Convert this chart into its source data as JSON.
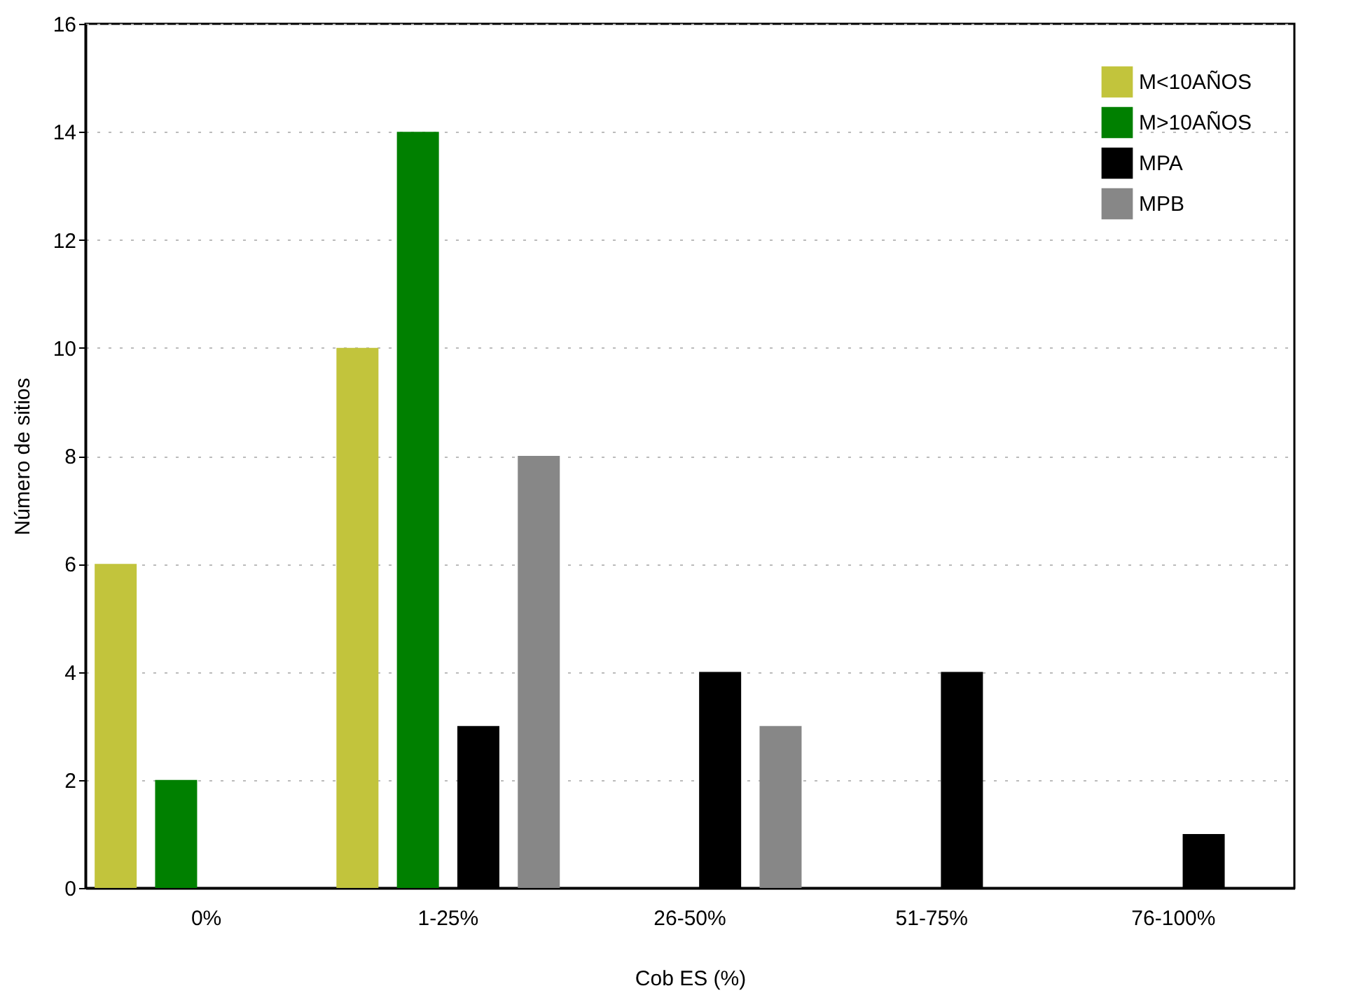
{
  "chart_data": {
    "type": "bar",
    "xlabel": "Cob ES (%)",
    "ylabel": "Número de sitios",
    "categories": [
      "0%",
      "1-25%",
      "26-50%",
      "51-75%",
      "76-100%"
    ],
    "series": [
      {
        "name": "M<10AÑOS",
        "color": "#c2c43c",
        "values": [
          6,
          10,
          0,
          0,
          0
        ]
      },
      {
        "name": "M>10AÑOS",
        "color": "#008000",
        "values": [
          2,
          14,
          0,
          0,
          0
        ]
      },
      {
        "name": "MPA",
        "color": "#000000",
        "values": [
          0,
          3,
          4,
          4,
          1
        ]
      },
      {
        "name": "MPB",
        "color": "#878787",
        "values": [
          0,
          8,
          3,
          0,
          0
        ]
      }
    ],
    "ylim": [
      0,
      16
    ],
    "yticks": [
      0,
      2,
      4,
      6,
      8,
      10,
      12,
      14,
      16
    ],
    "grid": "y",
    "legend": "top right"
  }
}
